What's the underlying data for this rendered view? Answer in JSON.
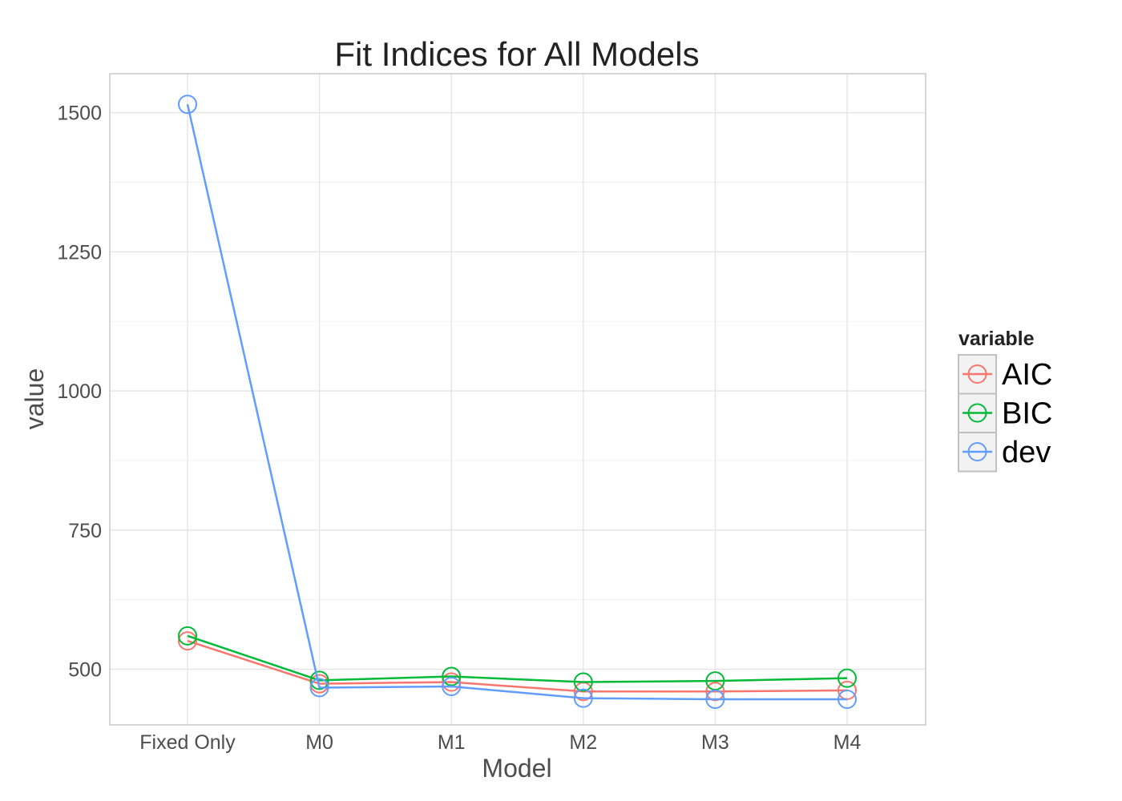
{
  "chart_data": {
    "type": "line",
    "title": "Fit Indices for All Models",
    "xlabel": "Model",
    "ylabel": "value",
    "categories": [
      "Fixed Only",
      "M0",
      "M1",
      "M2",
      "M3",
      "M4"
    ],
    "ylim": [
      400,
      1570
    ],
    "yticks": [
      500,
      750,
      1000,
      1250,
      1500
    ],
    "grid": true,
    "marker": "open-circle",
    "legend": {
      "title": "variable",
      "position": "right"
    },
    "series": [
      {
        "name": "AIC",
        "color": "#F8766D",
        "values": [
          551,
          474,
          477,
          460,
          460,
          462
        ]
      },
      {
        "name": "BIC",
        "color": "#00BA38",
        "values": [
          560,
          480,
          487,
          477,
          479,
          484
        ]
      },
      {
        "name": "dev",
        "color": "#619CFF",
        "values": [
          1515,
          467,
          469,
          448,
          446,
          446
        ]
      }
    ]
  }
}
